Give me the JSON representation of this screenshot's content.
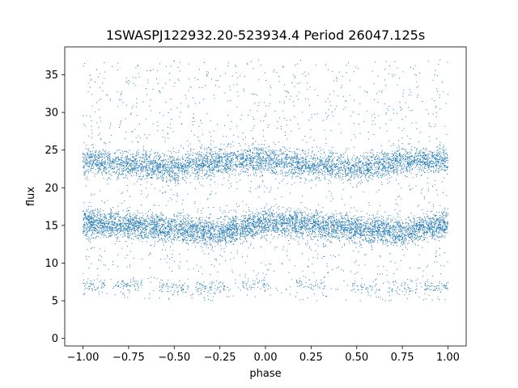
{
  "chart_data": {
    "type": "scatter",
    "title": "1SWASPJ122932.20-523934.4 Period 26047.125s",
    "xlabel": "phase",
    "ylabel": "flux",
    "xlim": [
      -1.1,
      1.1
    ],
    "ylim": [
      -1.0,
      38.7
    ],
    "xticks": [
      -1.0,
      -0.75,
      -0.5,
      -0.25,
      0.0,
      0.25,
      0.5,
      0.75,
      1.0
    ],
    "xtick_labels": [
      "−1.00",
      "−0.75",
      "−0.50",
      "−0.25",
      "0.00",
      "0.25",
      "0.50",
      "0.75",
      "1.00"
    ],
    "yticks": [
      0,
      5,
      10,
      15,
      20,
      25,
      30,
      35
    ],
    "ytick_labels": [
      "0",
      "5",
      "10",
      "15",
      "20",
      "25",
      "30",
      "35"
    ],
    "grid": false,
    "marker_color": "#1f77b4",
    "x_range_of_points": [
      -1.0,
      1.0
    ],
    "series": [
      {
        "band": "upper",
        "x": [
          -1.0,
          -0.75,
          -0.5,
          -0.25,
          0.0,
          0.25,
          0.5,
          0.75,
          1.0
        ],
        "y_center": [
          23.6,
          23.0,
          22.6,
          23.6,
          23.7,
          23.0,
          22.6,
          23.6,
          23.6
        ],
        "y_spread": 2.0
      },
      {
        "band": "lower",
        "x": [
          -1.0,
          -0.75,
          -0.5,
          -0.25,
          0.0,
          0.25,
          0.5,
          0.75,
          1.0
        ],
        "y_center": [
          15.3,
          15.0,
          14.6,
          14.1,
          15.4,
          15.1,
          14.6,
          14.1,
          15.3
        ],
        "y_spread": 2.0
      },
      {
        "band": "faint",
        "x": [
          -0.95,
          -0.75,
          -0.5,
          -0.3,
          -0.05,
          0.25,
          0.55,
          0.75,
          0.95
        ],
        "y_center": [
          7.0,
          7.2,
          6.8,
          6.6,
          7.0,
          7.2,
          6.8,
          6.6,
          7.0
        ],
        "y_spread": 1.0
      }
    ]
  }
}
